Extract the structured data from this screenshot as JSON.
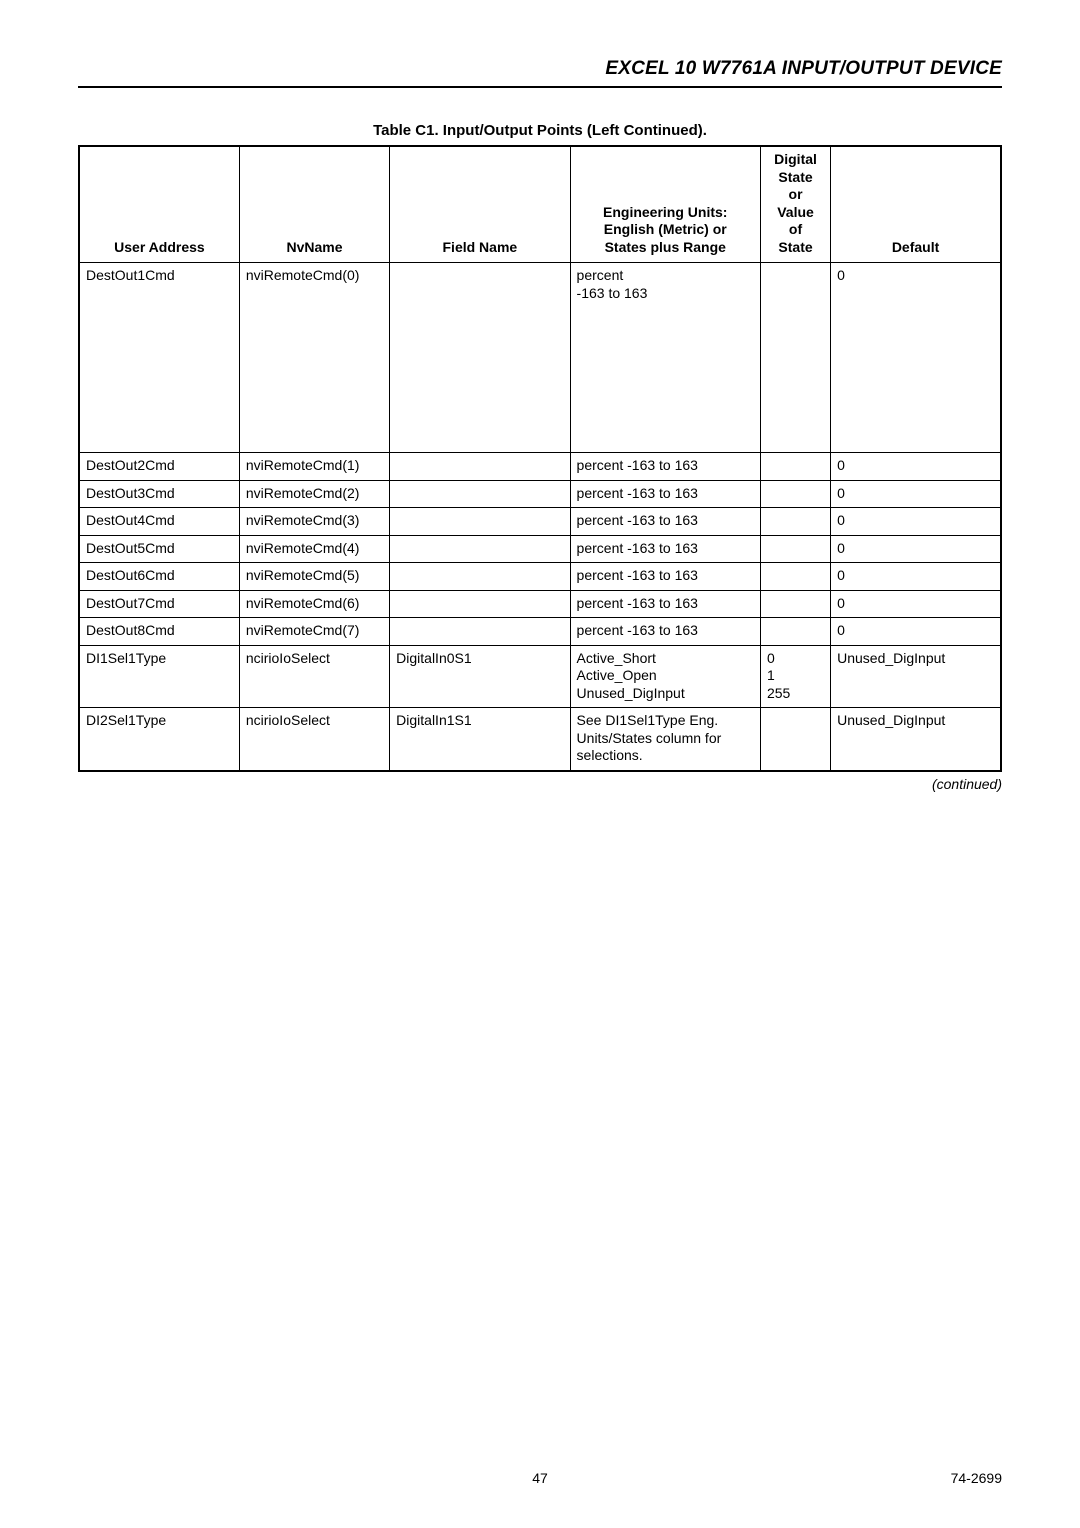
{
  "header": {
    "title": "EXCEL 10 W7761A INPUT/OUTPUT DEVICE"
  },
  "table": {
    "caption": "Table C1. Input/Output Points (Left Continued).",
    "columns": [
      "User Address",
      "NvName",
      "Field Name",
      "Engineering Units:\nEnglish (Metric) or\nStates plus Range",
      "Digital\nState\nor\nValue\nof\nState",
      "Default"
    ],
    "rows": [
      {
        "user_address": "DestOut1Cmd",
        "nvname": "nviRemoteCmd(0)",
        "field_name": "",
        "units": "percent\n-163 to 163",
        "state": "",
        "default": "0",
        "tall": true
      },
      {
        "user_address": "DestOut2Cmd",
        "nvname": "nviRemoteCmd(1)",
        "field_name": "",
        "units": "percent -163 to 163",
        "state": "",
        "default": "0"
      },
      {
        "user_address": "DestOut3Cmd",
        "nvname": "nviRemoteCmd(2)",
        "field_name": "",
        "units": "percent -163 to 163",
        "state": "",
        "default": "0"
      },
      {
        "user_address": "DestOut4Cmd",
        "nvname": "nviRemoteCmd(3)",
        "field_name": "",
        "units": "percent -163 to 163",
        "state": "",
        "default": "0"
      },
      {
        "user_address": "DestOut5Cmd",
        "nvname": "nviRemoteCmd(4)",
        "field_name": "",
        "units": "percent -163 to 163",
        "state": "",
        "default": "0"
      },
      {
        "user_address": "DestOut6Cmd",
        "nvname": "nviRemoteCmd(5)",
        "field_name": "",
        "units": "percent -163 to 163",
        "state": "",
        "default": "0"
      },
      {
        "user_address": "DestOut7Cmd",
        "nvname": "nviRemoteCmd(6)",
        "field_name": "",
        "units": "percent -163 to 163",
        "state": "",
        "default": "0"
      },
      {
        "user_address": "DestOut8Cmd",
        "nvname": "nviRemoteCmd(7)",
        "field_name": "",
        "units": "percent -163 to 163",
        "state": "",
        "default": "0"
      },
      {
        "user_address": "DI1Sel1Type",
        "nvname": "ncirioIoSelect",
        "field_name": "DigitalIn0S1",
        "units": "Active_Short\nActive_Open\nUnused_DigInput",
        "state": "0\n1\n255",
        "default": "Unused_DigInput"
      },
      {
        "user_address": "DI2Sel1Type",
        "nvname": "ncirioIoSelect",
        "field_name": "DigitalIn1S1",
        "units": "See DI1Sel1Type Eng. Units/States column for selections.",
        "state": "",
        "default": "Unused_DigInput"
      }
    ],
    "continued_label": "(continued)"
  },
  "footer": {
    "page_number": "47",
    "doc_number": "74-2699"
  }
}
